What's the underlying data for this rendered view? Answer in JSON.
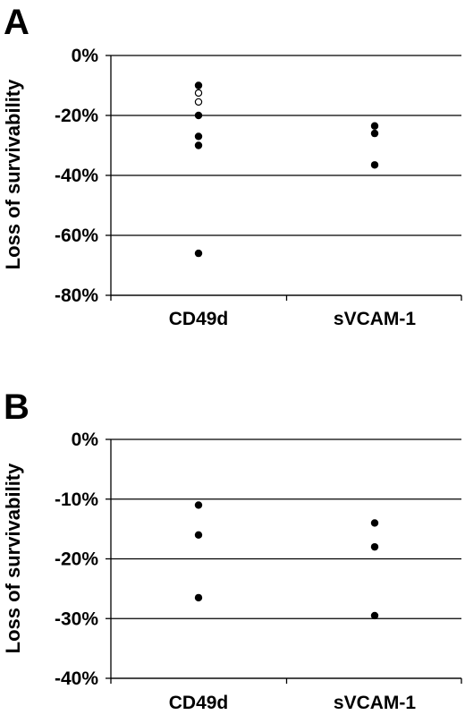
{
  "chart_data": [
    {
      "type": "scatter",
      "panel_label": "A",
      "ylabel": "Loss of survivability",
      "categories": [
        "CD49d",
        "sVCAM-1"
      ],
      "ylim": [
        -80,
        0
      ],
      "yticks": [
        0,
        -20,
        -40,
        -60,
        -80
      ],
      "ytick_labels": [
        "0%",
        "-20%",
        "-40%",
        "-60%",
        "-80%"
      ],
      "grid": true,
      "series": [
        {
          "marker": "filled",
          "color": "#000000",
          "points": [
            {
              "category": "CD49d",
              "y": -10
            },
            {
              "category": "CD49d",
              "y": -20
            },
            {
              "category": "CD49d",
              "y": -27
            },
            {
              "category": "CD49d",
              "y": -30
            },
            {
              "category": "CD49d",
              "y": -66
            },
            {
              "category": "sVCAM-1",
              "y": -23.5
            },
            {
              "category": "sVCAM-1",
              "y": -26
            },
            {
              "category": "sVCAM-1",
              "y": -36.5
            }
          ]
        },
        {
          "marker": "open",
          "color": "#000000",
          "points": [
            {
              "category": "CD49d",
              "y": -12.5
            },
            {
              "category": "CD49d",
              "y": -15.5
            }
          ]
        }
      ]
    },
    {
      "type": "scatter",
      "panel_label": "B",
      "ylabel": "Loss of survivability",
      "categories": [
        "CD49d",
        "sVCAM-1"
      ],
      "ylim": [
        -40,
        0
      ],
      "yticks": [
        0,
        -10,
        -20,
        -30,
        -40
      ],
      "ytick_labels": [
        "0%",
        "-10%",
        "-20%",
        "-30%",
        "-40%"
      ],
      "grid": true,
      "series": [
        {
          "marker": "filled",
          "color": "#000000",
          "points": [
            {
              "category": "CD49d",
              "y": -11
            },
            {
              "category": "CD49d",
              "y": -16
            },
            {
              "category": "CD49d",
              "y": -26.5
            },
            {
              "category": "sVCAM-1",
              "y": -14
            },
            {
              "category": "sVCAM-1",
              "y": -18
            },
            {
              "category": "sVCAM-1",
              "y": -29.5
            }
          ]
        }
      ]
    }
  ]
}
